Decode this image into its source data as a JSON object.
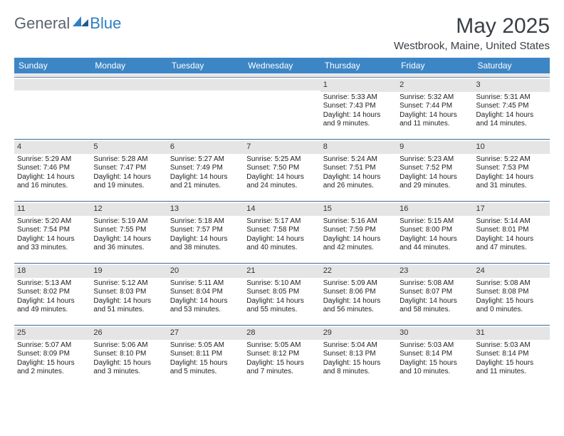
{
  "colors": {
    "header_bg": "#3d86c6",
    "header_text": "#ffffff",
    "daynum_bg": "#e5e5e5",
    "row_border": "#3d6a94",
    "page_bg": "#ffffff",
    "text": "#222222",
    "logo_general": "#5a6470",
    "logo_blue": "#2f7fc2",
    "title_color": "#3a3f44"
  },
  "logo": {
    "part1": "General",
    "part2": "Blue"
  },
  "title": "May 2025",
  "location": "Westbrook, Maine, United States",
  "weekdays": [
    "Sunday",
    "Monday",
    "Tuesday",
    "Wednesday",
    "Thursday",
    "Friday",
    "Saturday"
  ],
  "weeks": [
    [
      null,
      null,
      null,
      null,
      {
        "num": "1",
        "sunrise": "5:33 AM",
        "sunset": "7:43 PM",
        "daylight": "14 hours and 9 minutes."
      },
      {
        "num": "2",
        "sunrise": "5:32 AM",
        "sunset": "7:44 PM",
        "daylight": "14 hours and 11 minutes."
      },
      {
        "num": "3",
        "sunrise": "5:31 AM",
        "sunset": "7:45 PM",
        "daylight": "14 hours and 14 minutes."
      }
    ],
    [
      {
        "num": "4",
        "sunrise": "5:29 AM",
        "sunset": "7:46 PM",
        "daylight": "14 hours and 16 minutes."
      },
      {
        "num": "5",
        "sunrise": "5:28 AM",
        "sunset": "7:47 PM",
        "daylight": "14 hours and 19 minutes."
      },
      {
        "num": "6",
        "sunrise": "5:27 AM",
        "sunset": "7:49 PM",
        "daylight": "14 hours and 21 minutes."
      },
      {
        "num": "7",
        "sunrise": "5:25 AM",
        "sunset": "7:50 PM",
        "daylight": "14 hours and 24 minutes."
      },
      {
        "num": "8",
        "sunrise": "5:24 AM",
        "sunset": "7:51 PM",
        "daylight": "14 hours and 26 minutes."
      },
      {
        "num": "9",
        "sunrise": "5:23 AM",
        "sunset": "7:52 PM",
        "daylight": "14 hours and 29 minutes."
      },
      {
        "num": "10",
        "sunrise": "5:22 AM",
        "sunset": "7:53 PM",
        "daylight": "14 hours and 31 minutes."
      }
    ],
    [
      {
        "num": "11",
        "sunrise": "5:20 AM",
        "sunset": "7:54 PM",
        "daylight": "14 hours and 33 minutes."
      },
      {
        "num": "12",
        "sunrise": "5:19 AM",
        "sunset": "7:55 PM",
        "daylight": "14 hours and 36 minutes."
      },
      {
        "num": "13",
        "sunrise": "5:18 AM",
        "sunset": "7:57 PM",
        "daylight": "14 hours and 38 minutes."
      },
      {
        "num": "14",
        "sunrise": "5:17 AM",
        "sunset": "7:58 PM",
        "daylight": "14 hours and 40 minutes."
      },
      {
        "num": "15",
        "sunrise": "5:16 AM",
        "sunset": "7:59 PM",
        "daylight": "14 hours and 42 minutes."
      },
      {
        "num": "16",
        "sunrise": "5:15 AM",
        "sunset": "8:00 PM",
        "daylight": "14 hours and 44 minutes."
      },
      {
        "num": "17",
        "sunrise": "5:14 AM",
        "sunset": "8:01 PM",
        "daylight": "14 hours and 47 minutes."
      }
    ],
    [
      {
        "num": "18",
        "sunrise": "5:13 AM",
        "sunset": "8:02 PM",
        "daylight": "14 hours and 49 minutes."
      },
      {
        "num": "19",
        "sunrise": "5:12 AM",
        "sunset": "8:03 PM",
        "daylight": "14 hours and 51 minutes."
      },
      {
        "num": "20",
        "sunrise": "5:11 AM",
        "sunset": "8:04 PM",
        "daylight": "14 hours and 53 minutes."
      },
      {
        "num": "21",
        "sunrise": "5:10 AM",
        "sunset": "8:05 PM",
        "daylight": "14 hours and 55 minutes."
      },
      {
        "num": "22",
        "sunrise": "5:09 AM",
        "sunset": "8:06 PM",
        "daylight": "14 hours and 56 minutes."
      },
      {
        "num": "23",
        "sunrise": "5:08 AM",
        "sunset": "8:07 PM",
        "daylight": "14 hours and 58 minutes."
      },
      {
        "num": "24",
        "sunrise": "5:08 AM",
        "sunset": "8:08 PM",
        "daylight": "15 hours and 0 minutes."
      }
    ],
    [
      {
        "num": "25",
        "sunrise": "5:07 AM",
        "sunset": "8:09 PM",
        "daylight": "15 hours and 2 minutes."
      },
      {
        "num": "26",
        "sunrise": "5:06 AM",
        "sunset": "8:10 PM",
        "daylight": "15 hours and 3 minutes."
      },
      {
        "num": "27",
        "sunrise": "5:05 AM",
        "sunset": "8:11 PM",
        "daylight": "15 hours and 5 minutes."
      },
      {
        "num": "28",
        "sunrise": "5:05 AM",
        "sunset": "8:12 PM",
        "daylight": "15 hours and 7 minutes."
      },
      {
        "num": "29",
        "sunrise": "5:04 AM",
        "sunset": "8:13 PM",
        "daylight": "15 hours and 8 minutes."
      },
      {
        "num": "30",
        "sunrise": "5:03 AM",
        "sunset": "8:14 PM",
        "daylight": "15 hours and 10 minutes."
      },
      {
        "num": "31",
        "sunrise": "5:03 AM",
        "sunset": "8:14 PM",
        "daylight": "15 hours and 11 minutes."
      }
    ]
  ],
  "labels": {
    "sunrise": "Sunrise: ",
    "sunset": "Sunset: ",
    "daylight": "Daylight: "
  }
}
